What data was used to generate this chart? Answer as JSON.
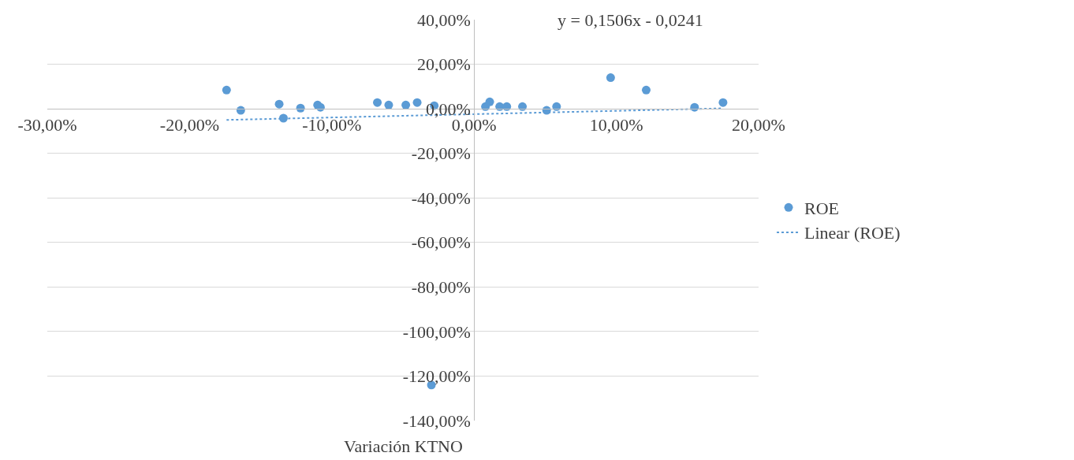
{
  "chart_data": {
    "type": "scatter",
    "xlabel": "Variación KTNO",
    "xlim": [
      -30,
      20
    ],
    "ylim": [
      -140,
      40
    ],
    "xticks": [
      {
        "value": -30,
        "label": "-30,00%"
      },
      {
        "value": -20,
        "label": "-20,00%"
      },
      {
        "value": -10,
        "label": "-10,00%"
      },
      {
        "value": 0,
        "label": "0,00%"
      },
      {
        "value": 10,
        "label": "10,00%"
      },
      {
        "value": 20,
        "label": "20,00%"
      }
    ],
    "yticks": [
      {
        "value": -140,
        "label": "-140,00%"
      },
      {
        "value": -120,
        "label": "-120,00%"
      },
      {
        "value": -100,
        "label": "-100,00%"
      },
      {
        "value": -80,
        "label": "-80,00%"
      },
      {
        "value": -60,
        "label": "-60,00%"
      },
      {
        "value": -40,
        "label": "-40,00%"
      },
      {
        "value": -20,
        "label": "-20,00%"
      },
      {
        "value": 0,
        "label": "0,00%"
      },
      {
        "value": 20,
        "label": "20,00%"
      },
      {
        "value": 40,
        "label": "40,00%"
      }
    ],
    "grid": "y",
    "legend": "right",
    "marker": "circle",
    "annotations": [
      "y = 0,1506x - 0,0241"
    ],
    "series": [
      {
        "name": "ROE",
        "color": "#5b9bd5",
        "x": [
          -17.4,
          -16.4,
          -13.7,
          -13.4,
          -12.2,
          -11.0,
          -10.8,
          -6.8,
          -6.0,
          -4.8,
          -4.0,
          -2.8,
          -3.0,
          0.8,
          1.1,
          1.8,
          2.3,
          3.4,
          5.1,
          5.8,
          9.6,
          12.1,
          15.5,
          17.5
        ],
        "values": [
          8.4,
          -0.7,
          2.1,
          -4.2,
          0.3,
          1.7,
          0.7,
          2.8,
          1.7,
          1.7,
          2.8,
          1.4,
          -124,
          1.0,
          3.1,
          1.0,
          1.0,
          1.0,
          -0.7,
          1.0,
          14.0,
          8.4,
          0.7,
          2.8
        ]
      },
      {
        "name": "Linear (ROE)",
        "type": "line",
        "color": "#5b9bd5",
        "line_style": "dotted",
        "marker": "none",
        "x": [
          -17.4,
          17.5
        ],
        "values": [
          -5.0,
          0.2
        ]
      }
    ]
  }
}
